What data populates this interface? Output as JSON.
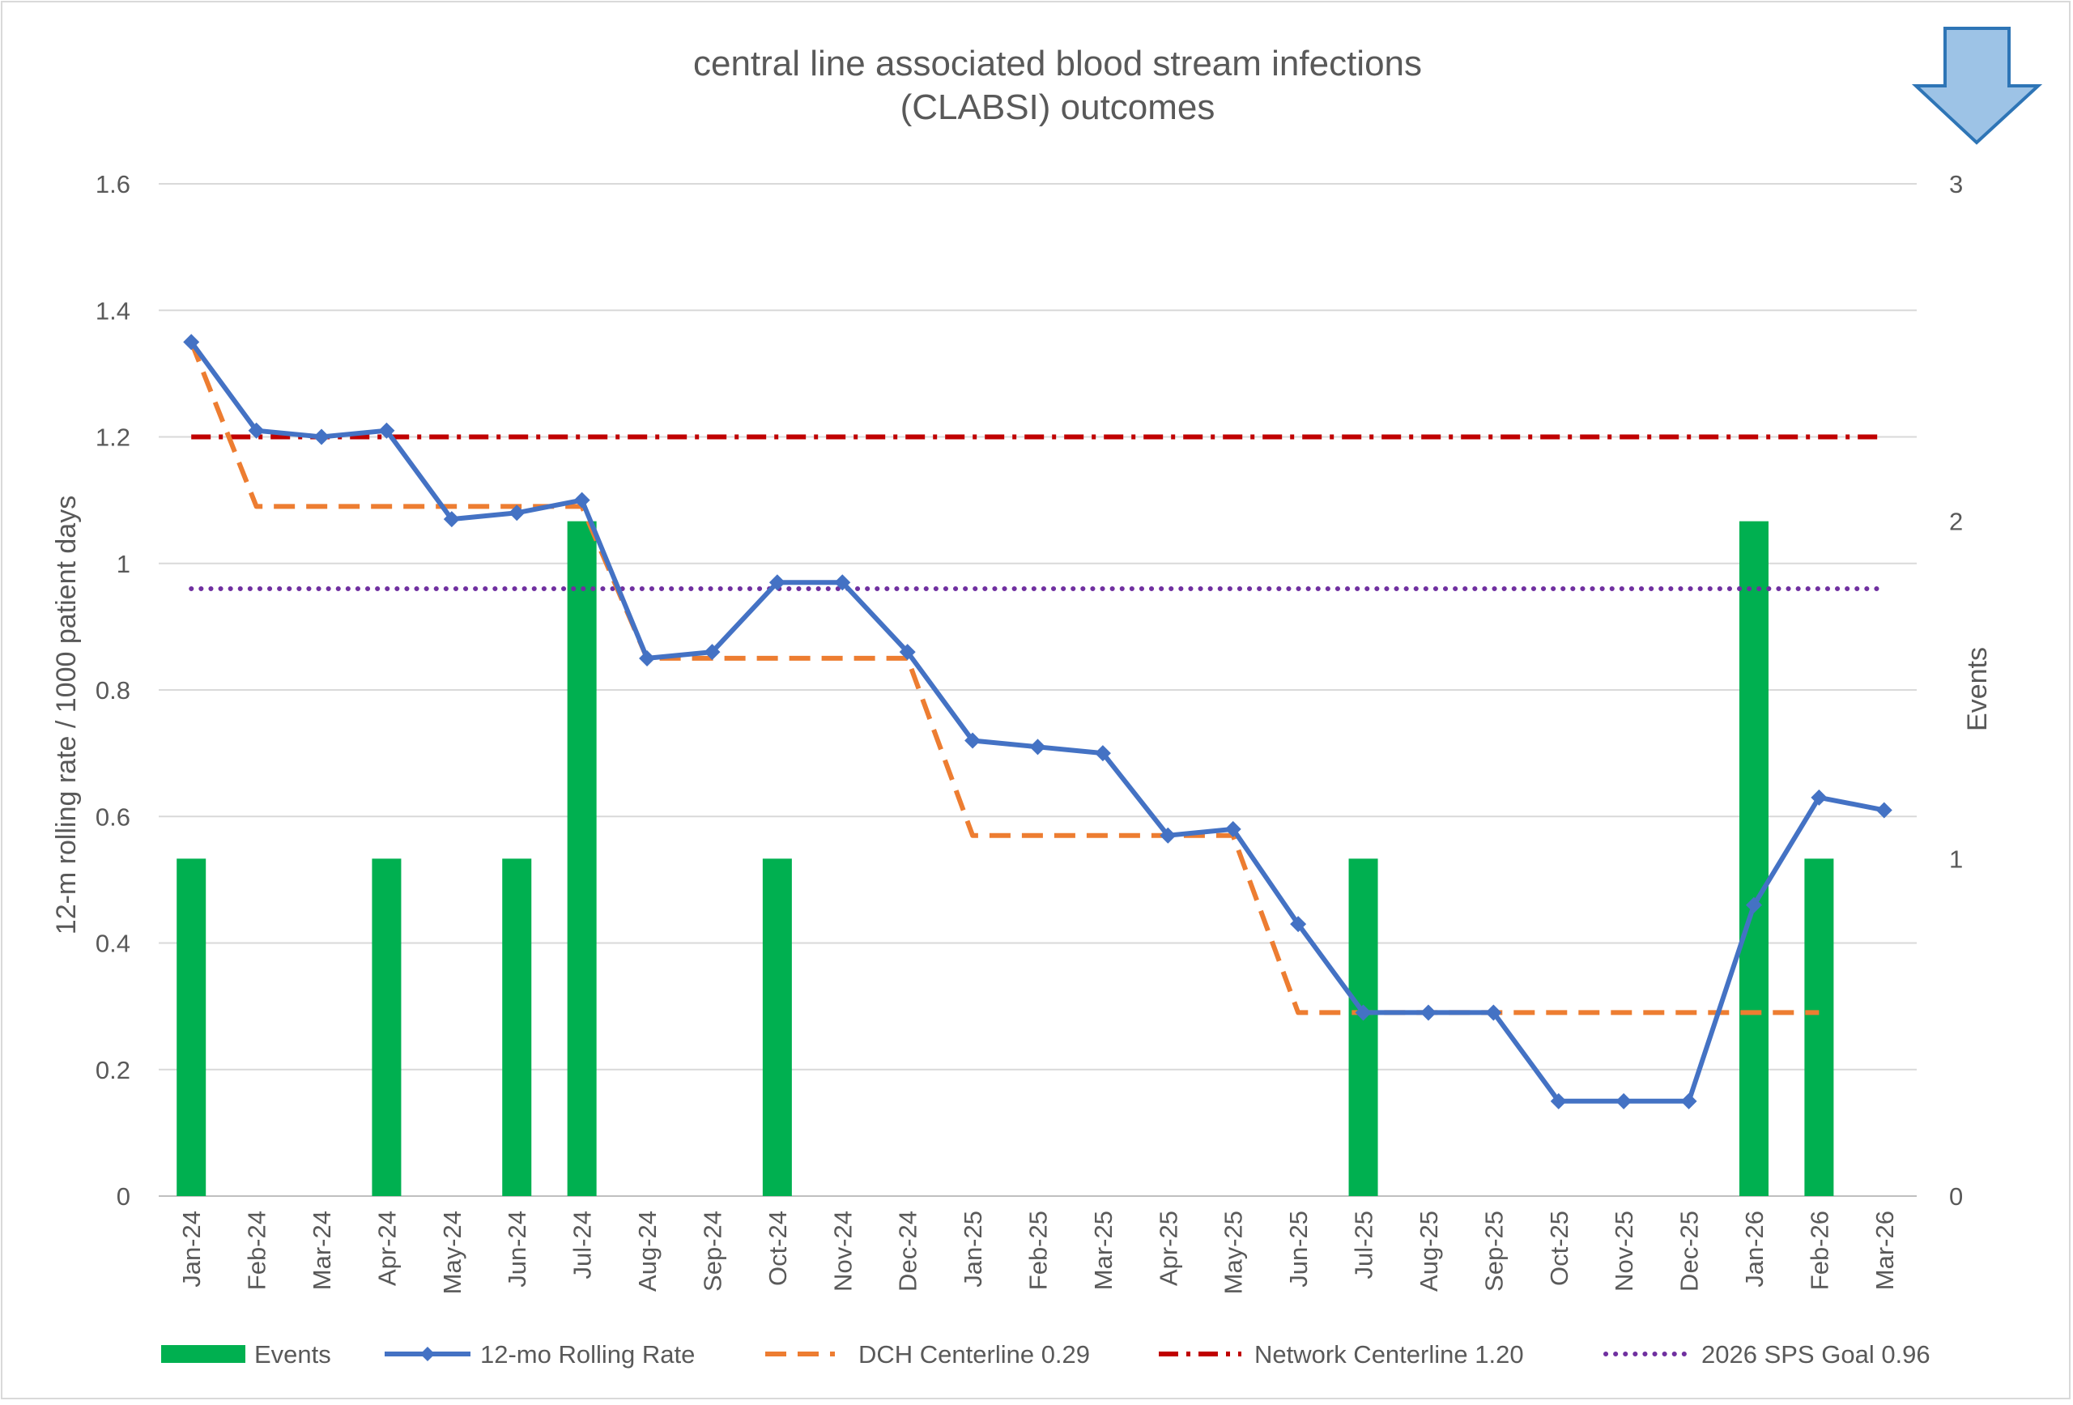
{
  "chart_data": {
    "type": "bar+line",
    "title_lines": [
      "central line associated blood stream infections",
      "(CLABSI) outcomes"
    ],
    "ylabel": "12-m rolling rate / 1000 patient days",
    "y2label": "Events",
    "ylim": [
      0,
      1.6
    ],
    "y_ticks": [
      "0",
      "0.2",
      "0.4",
      "0.6",
      "0.8",
      "1",
      "1.2",
      "1.4",
      "1.6"
    ],
    "y2lim": [
      0,
      3
    ],
    "y2_ticks": [
      "0",
      "1",
      "2",
      "3"
    ],
    "grid": true,
    "legend_position": "bottom",
    "categories": [
      "Jan-24",
      "Feb-24",
      "Mar-24",
      "Apr-24",
      "May-24",
      "Jun-24",
      "Jul-24",
      "Aug-24",
      "Sep-24",
      "Oct-24",
      "Nov-24",
      "Dec-24",
      "Jan-25",
      "Feb-25",
      "Mar-25",
      "Apr-25",
      "May-25",
      "Jun-25",
      "Jul-25",
      "Aug-25",
      "Sep-25",
      "Oct-25",
      "Nov-25",
      "Dec-25",
      "Jan-26",
      "Feb-26",
      "Mar-26"
    ],
    "series": [
      {
        "name": "Events",
        "type": "bar",
        "axis": "right",
        "color": "#00b050",
        "values": [
          1,
          0,
          0,
          1,
          0,
          1,
          2,
          0,
          0,
          1,
          0,
          0,
          0,
          0,
          0,
          0,
          0,
          0,
          1,
          0,
          0,
          0,
          0,
          0,
          2,
          1,
          0
        ]
      },
      {
        "name": "12-mo Rolling Rate",
        "type": "line",
        "axis": "left",
        "color": "#4472c4",
        "marker": "diamond",
        "values": [
          1.35,
          1.21,
          1.2,
          1.21,
          1.07,
          1.08,
          1.1,
          0.85,
          0.86,
          0.97,
          0.97,
          0.86,
          0.72,
          0.71,
          0.7,
          0.57,
          0.58,
          0.43,
          0.29,
          0.29,
          0.29,
          0.15,
          0.15,
          0.15,
          0.46,
          0.63,
          0.61
        ]
      },
      {
        "name": "DCH Centerline 0.29",
        "type": "line",
        "axis": "left",
        "color": "#ed7d31",
        "dash": "dashed",
        "values": [
          1.35,
          1.09,
          1.09,
          1.09,
          1.09,
          1.09,
          1.09,
          0.85,
          0.85,
          0.85,
          0.85,
          0.85,
          0.57,
          0.57,
          0.57,
          0.57,
          0.57,
          0.29,
          0.29,
          0.29,
          0.29,
          0.29,
          0.29,
          0.29,
          0.29,
          0.29,
          null
        ]
      },
      {
        "name": "Network Centerline 1.20",
        "type": "line",
        "axis": "left",
        "color": "#c00000",
        "dash": "dash-dot",
        "values": [
          1.2,
          1.2,
          1.2,
          1.2,
          1.2,
          1.2,
          1.2,
          1.2,
          1.2,
          1.2,
          1.2,
          1.2,
          1.2,
          1.2,
          1.2,
          1.2,
          1.2,
          1.2,
          1.2,
          1.2,
          1.2,
          1.2,
          1.2,
          1.2,
          1.2,
          1.2,
          1.2
        ]
      },
      {
        "name": "2026 SPS Goal 0.96",
        "type": "line",
        "axis": "left",
        "color": "#7030a0",
        "dash": "dotted",
        "values": [
          0.96,
          0.96,
          0.96,
          0.96,
          0.96,
          0.96,
          0.96,
          0.96,
          0.96,
          0.96,
          0.96,
          0.96,
          0.96,
          0.96,
          0.96,
          0.96,
          0.96,
          0.96,
          0.96,
          0.96,
          0.96,
          0.96,
          0.96,
          0.96,
          0.96,
          0.96,
          0.96
        ]
      }
    ],
    "annotation_icon": "down-arrow-icon",
    "annotation_icon_color": "#9dc3e6",
    "annotation_icon_stroke": "#2e75b6"
  }
}
